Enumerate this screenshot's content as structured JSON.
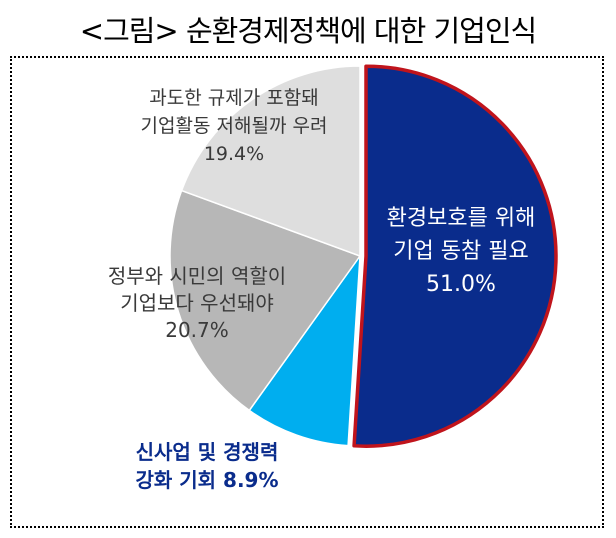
{
  "title": "<그림> 순환경제정책에 대한 기업인식",
  "colors": {
    "highlight_border": "#c0141c",
    "slice_1": "#0a2c8c",
    "slice_2": "#00aeef",
    "slice_3": "#b7b7b7",
    "slice_4": "#dedede",
    "dark_label": "#3a3a3a"
  },
  "chart_data": {
    "type": "pie",
    "slices": [
      {
        "value": 51.0,
        "label_lines": [
          "환경보호를 위해",
          "기업 동참 필요",
          "51.0%"
        ]
      },
      {
        "value": 8.9,
        "label_lines": [
          "신사업 및 경쟁력",
          "강화 기회 8.9%"
        ]
      },
      {
        "value": 20.7,
        "label_lines": [
          "정부와 시민의 역할이",
          "기업보다 우선돼야",
          "20.7%"
        ]
      },
      {
        "value": 19.4,
        "label_lines": [
          "과도한 규제가 포함돼",
          "기업활동 저해될까 우려",
          "19.4%"
        ]
      }
    ],
    "start": "12 o'clock",
    "direction": "clockwise",
    "highlighted_slice": 0
  }
}
